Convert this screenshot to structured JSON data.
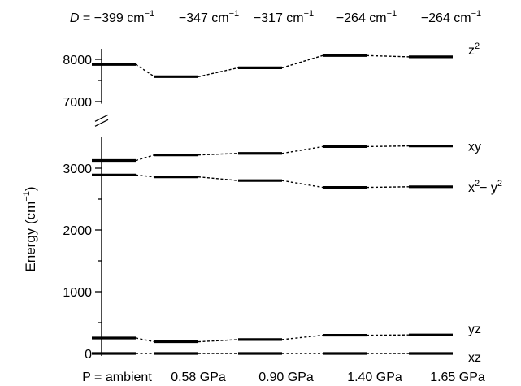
{
  "chart_data": {
    "type": "line",
    "title": "",
    "xlabel": "",
    "ylabel": "Energy (cm",
    "ylabel_sup": "−1",
    "ylabel_end": ")",
    "categories": [
      "P = ambient",
      "0.58 GPa",
      "0.90 GPa",
      "1.40 GPa",
      "1.65 GPa"
    ],
    "top_labels": [
      {
        "prefix": "D",
        "value": " = −399 cm",
        "sup": "−1"
      },
      {
        "prefix": "",
        "value": "−347 cm",
        "sup": "−1"
      },
      {
        "prefix": "",
        "value": "−317 cm",
        "sup": "−1"
      },
      {
        "prefix": "",
        "value": "−264 cm",
        "sup": "−1"
      },
      {
        "prefix": "",
        "value": "−264 cm",
        "sup": "−1"
      }
    ],
    "series": [
      {
        "name": "xz",
        "label_base": "xz",
        "label_sup": "",
        "values": [
          0,
          0,
          0,
          0,
          0
        ]
      },
      {
        "name": "yz",
        "label_base": "yz",
        "label_sup": "",
        "values": [
          250,
          190,
          225,
          295,
          300
        ]
      },
      {
        "name": "x2-y2",
        "label_base": "x",
        "label_sup": "2",
        "label_mid": "− y",
        "label_sup2": "2",
        "values": [
          2890,
          2860,
          2800,
          2690,
          2700
        ]
      },
      {
        "name": "xy",
        "label_base": "xy",
        "label_sup": "",
        "values": [
          3125,
          3215,
          3240,
          3350,
          3360
        ]
      },
      {
        "name": "z2",
        "label_base": "z",
        "label_sup": "2",
        "values": [
          7880,
          7590,
          7800,
          8090,
          8060
        ]
      }
    ],
    "y_axis": {
      "lower_range": [
        0,
        3500
      ],
      "upper_range": [
        7000,
        8000
      ],
      "break_between": [
        3500,
        7000
      ],
      "lower_ticks": [
        0,
        1000,
        2000,
        3000
      ],
      "lower_minor_ticks": [
        500,
        1500,
        2500
      ],
      "upper_ticks": [
        7000,
        8000
      ],
      "upper_minor_ticks": [
        7500
      ]
    },
    "grid": false,
    "legend": "none",
    "line_color": "#000000"
  }
}
